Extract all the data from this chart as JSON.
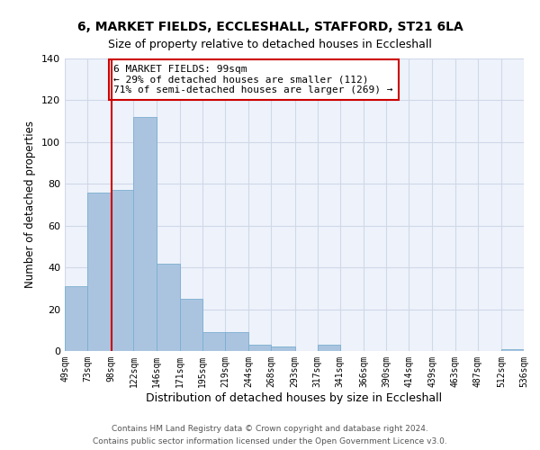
{
  "title1": "6, MARKET FIELDS, ECCLESHALL, STAFFORD, ST21 6LA",
  "title2": "Size of property relative to detached houses in Eccleshall",
  "xlabel": "Distribution of detached houses by size in Eccleshall",
  "ylabel": "Number of detached properties",
  "bar_edges": [
    49,
    73,
    98,
    122,
    146,
    171,
    195,
    219,
    244,
    268,
    293,
    317,
    341,
    366,
    390,
    414,
    439,
    463,
    487,
    512,
    536
  ],
  "bar_heights": [
    31,
    76,
    77,
    112,
    42,
    25,
    9,
    9,
    3,
    2,
    0,
    3,
    0,
    0,
    0,
    0,
    0,
    0,
    0,
    1
  ],
  "bar_color": "#aac4e0",
  "bar_edge_color": "#7aaed0",
  "grid_color": "#d0d8e8",
  "background_color": "#eef2fa",
  "vline_x": 99,
  "vline_color": "#cc0000",
  "annotation_text": "6 MARKET FIELDS: 99sqm\n← 29% of detached houses are smaller (112)\n71% of semi-detached houses are larger (269) →",
  "annotation_box_color": "#ffffff",
  "annotation_box_edge": "#cc0000",
  "ylim": [
    0,
    140
  ],
  "yticks": [
    0,
    20,
    40,
    60,
    80,
    100,
    120,
    140
  ],
  "tick_labels": [
    "49sqm",
    "73sqm",
    "98sqm",
    "122sqm",
    "146sqm",
    "171sqm",
    "195sqm",
    "219sqm",
    "244sqm",
    "268sqm",
    "293sqm",
    "317sqm",
    "341sqm",
    "366sqm",
    "390sqm",
    "414sqm",
    "439sqm",
    "463sqm",
    "487sqm",
    "512sqm",
    "536sqm"
  ],
  "footer1": "Contains HM Land Registry data © Crown copyright and database right 2024.",
  "footer2": "Contains public sector information licensed under the Open Government Licence v3.0.",
  "title1_fontsize": 10,
  "title2_fontsize": 9,
  "ylabel_fontsize": 8.5,
  "xlabel_fontsize": 9,
  "ytick_fontsize": 8,
  "xtick_fontsize": 7,
  "annotation_fontsize": 8,
  "footer_fontsize": 6.5
}
